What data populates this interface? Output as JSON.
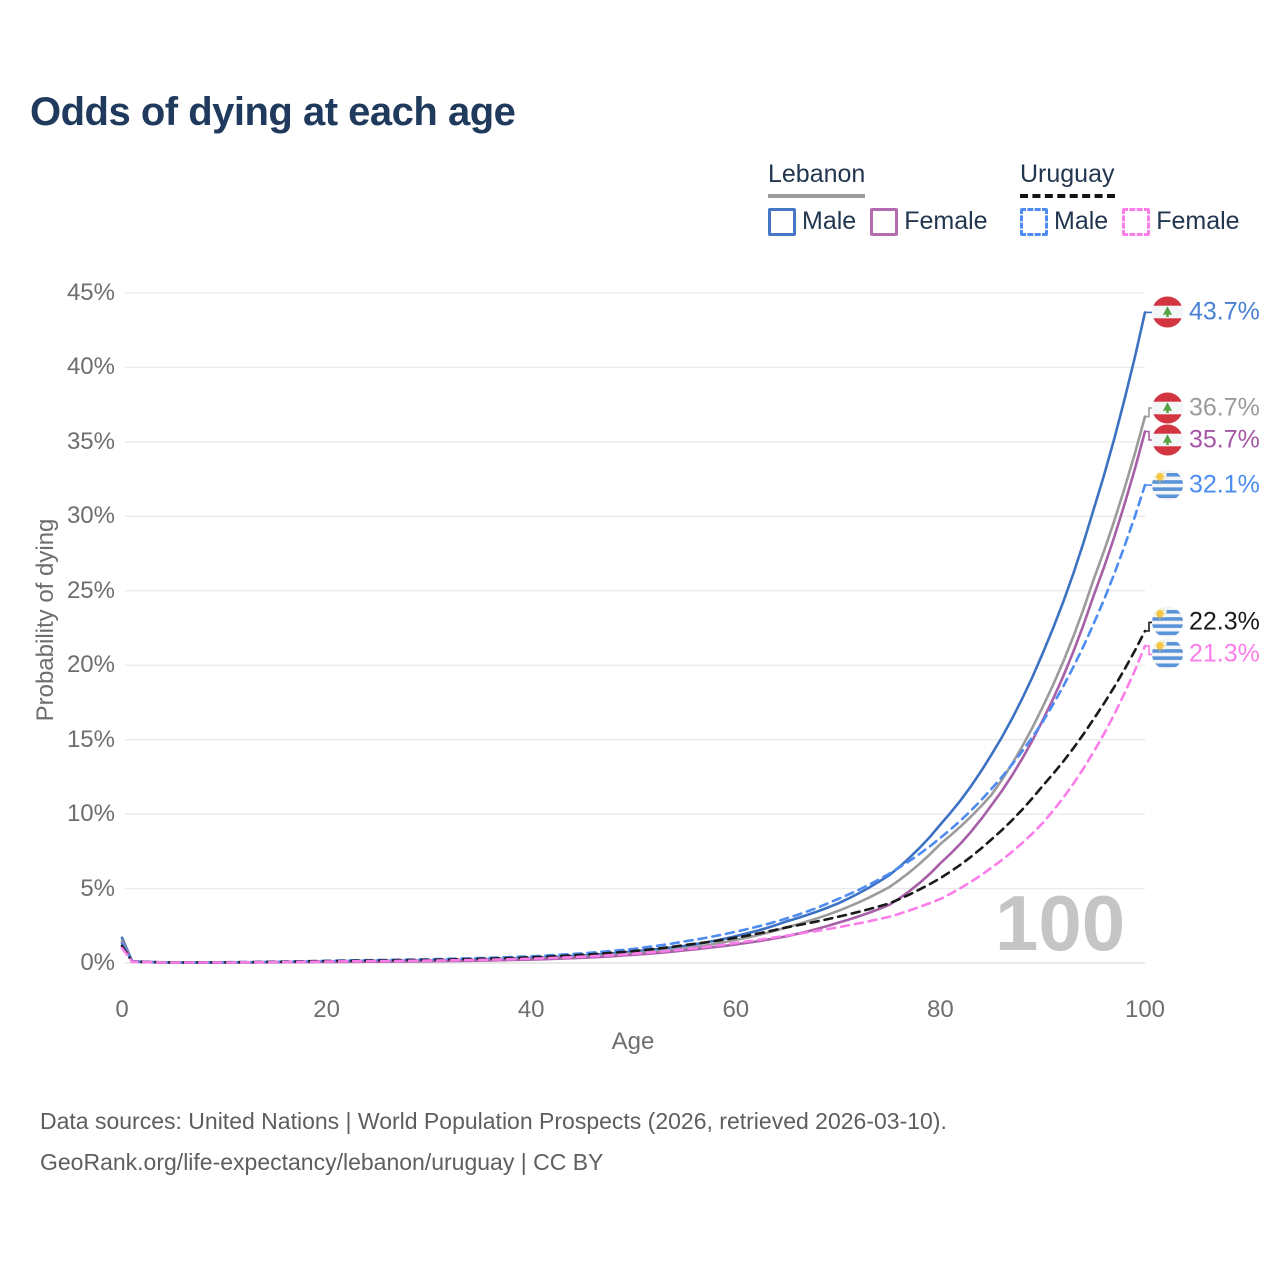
{
  "title": "Odds of dying at each age",
  "legend": {
    "groups": [
      {
        "country": "Lebanon",
        "line_style": "solid",
        "line_color": "#9b9b9b",
        "items": [
          {
            "label": "Male",
            "color": "#4577c6",
            "dash": false
          },
          {
            "label": "Female",
            "color": "#b26bb0",
            "dash": false
          }
        ]
      },
      {
        "country": "Uruguay",
        "line_style": "dashed",
        "line_color": "#141414",
        "items": [
          {
            "label": "Male",
            "color": "#4e8cf2",
            "dash": true
          },
          {
            "label": "Female",
            "color": "#fb7de9",
            "dash": true
          }
        ]
      }
    ]
  },
  "chart_data": {
    "type": "line",
    "title": "Odds of dying at each age",
    "xlabel": "Age",
    "ylabel": "Probability of dying",
    "xlim": [
      0,
      100
    ],
    "ylim": [
      0,
      45
    ],
    "grid": true,
    "legend_position": "top-right",
    "age_indicator": "100",
    "xticks": [
      0,
      20,
      40,
      60,
      80,
      100
    ],
    "yticks": [
      0,
      5,
      10,
      15,
      20,
      25,
      30,
      35,
      40,
      45
    ],
    "ytick_suffix": "%",
    "ages": [
      0,
      1,
      5,
      10,
      15,
      20,
      25,
      30,
      35,
      40,
      45,
      50,
      55,
      60,
      65,
      70,
      75,
      80,
      85,
      90,
      95,
      100
    ],
    "series": [
      {
        "name": "Lebanon Male",
        "country": "Lebanon",
        "sex": "Male",
        "color": "#3d72c3",
        "label_color": "#4a80d4",
        "dash": false,
        "flag": "lebanon",
        "values": [
          1.7,
          0.12,
          0.03,
          0.04,
          0.07,
          0.11,
          0.14,
          0.17,
          0.23,
          0.33,
          0.5,
          0.78,
          1.15,
          1.8,
          2.8,
          4.0,
          5.9,
          9.3,
          14.0,
          20.8,
          30.5,
          43.7
        ],
        "end_label": "43.7%"
      },
      {
        "name": "Lebanon Total",
        "country": "Lebanon",
        "sex": "Both",
        "color": "#9b9b9b",
        "label_color": "#9b9b9b",
        "dash": false,
        "flag": "lebanon",
        "values": [
          1.5,
          0.11,
          0.027,
          0.035,
          0.06,
          0.09,
          0.12,
          0.15,
          0.2,
          0.28,
          0.42,
          0.65,
          0.98,
          1.55,
          2.4,
          3.5,
          5.1,
          8.0,
          11.3,
          17.2,
          25.8,
          36.7
        ],
        "end_label": "36.7%"
      },
      {
        "name": "Lebanon Female",
        "country": "Lebanon",
        "sex": "Female",
        "color": "#a75fa7",
        "label_color": "#a656a6",
        "dash": false,
        "flag": "lebanon",
        "values": [
          1.35,
          0.1,
          0.025,
          0.03,
          0.05,
          0.07,
          0.09,
          0.12,
          0.16,
          0.23,
          0.35,
          0.55,
          0.85,
          1.25,
          1.8,
          2.7,
          3.9,
          6.7,
          10.6,
          16.3,
          24.7,
          35.7
        ],
        "end_label": "35.7%"
      },
      {
        "name": "Uruguay Male",
        "country": "Uruguay",
        "sex": "Male",
        "color": "#4e8cf2",
        "label_color": "#4a8cf0",
        "dash": true,
        "flag": "uruguay",
        "values": [
          1.3,
          0.1,
          0.03,
          0.045,
          0.09,
          0.15,
          0.2,
          0.25,
          0.33,
          0.45,
          0.65,
          0.95,
          1.45,
          2.1,
          3.0,
          4.3,
          6.0,
          8.4,
          11.7,
          16.2,
          22.8,
          32.1
        ],
        "end_label": "32.1%"
      },
      {
        "name": "Uruguay Total",
        "country": "Uruguay",
        "sex": "Both",
        "color": "#1a1a1a",
        "label_color": "#1a1a1a",
        "dash": true,
        "flag": "uruguay",
        "values": [
          1.15,
          0.09,
          0.035,
          0.045,
          0.08,
          0.13,
          0.17,
          0.21,
          0.28,
          0.38,
          0.55,
          0.8,
          1.2,
          1.7,
          2.4,
          3.1,
          4.0,
          5.7,
          8.3,
          11.9,
          16.4,
          22.3
        ],
        "end_label": "22.3%"
      },
      {
        "name": "Uruguay Female",
        "country": "Uruguay",
        "sex": "Female",
        "color": "#fb7de9",
        "label_color": "#fb7de9",
        "dash": true,
        "flag": "uruguay",
        "values": [
          1.0,
          0.08,
          0.03,
          0.04,
          0.06,
          0.1,
          0.13,
          0.16,
          0.21,
          0.29,
          0.42,
          0.62,
          0.92,
          1.35,
          1.85,
          2.4,
          3.1,
          4.3,
          6.4,
          9.4,
          14.2,
          21.3
        ],
        "end_label": "21.3%"
      }
    ]
  },
  "flag_colors": {
    "lebanon": {
      "red": "#d23440",
      "cedar_green": "#55a245",
      "white": "#f4f5f6"
    },
    "uruguay": {
      "blue": "#5b93d8",
      "sun_yellow": "#f6c843",
      "white": "#f4f5f6"
    }
  },
  "footer": {
    "line1": "Data sources: United Nations | World Population Prospects (2026, retrieved 2026-03-10).",
    "line2": "GeoRank.org/life-expectancy/lebanon/uruguay | CC BY"
  }
}
